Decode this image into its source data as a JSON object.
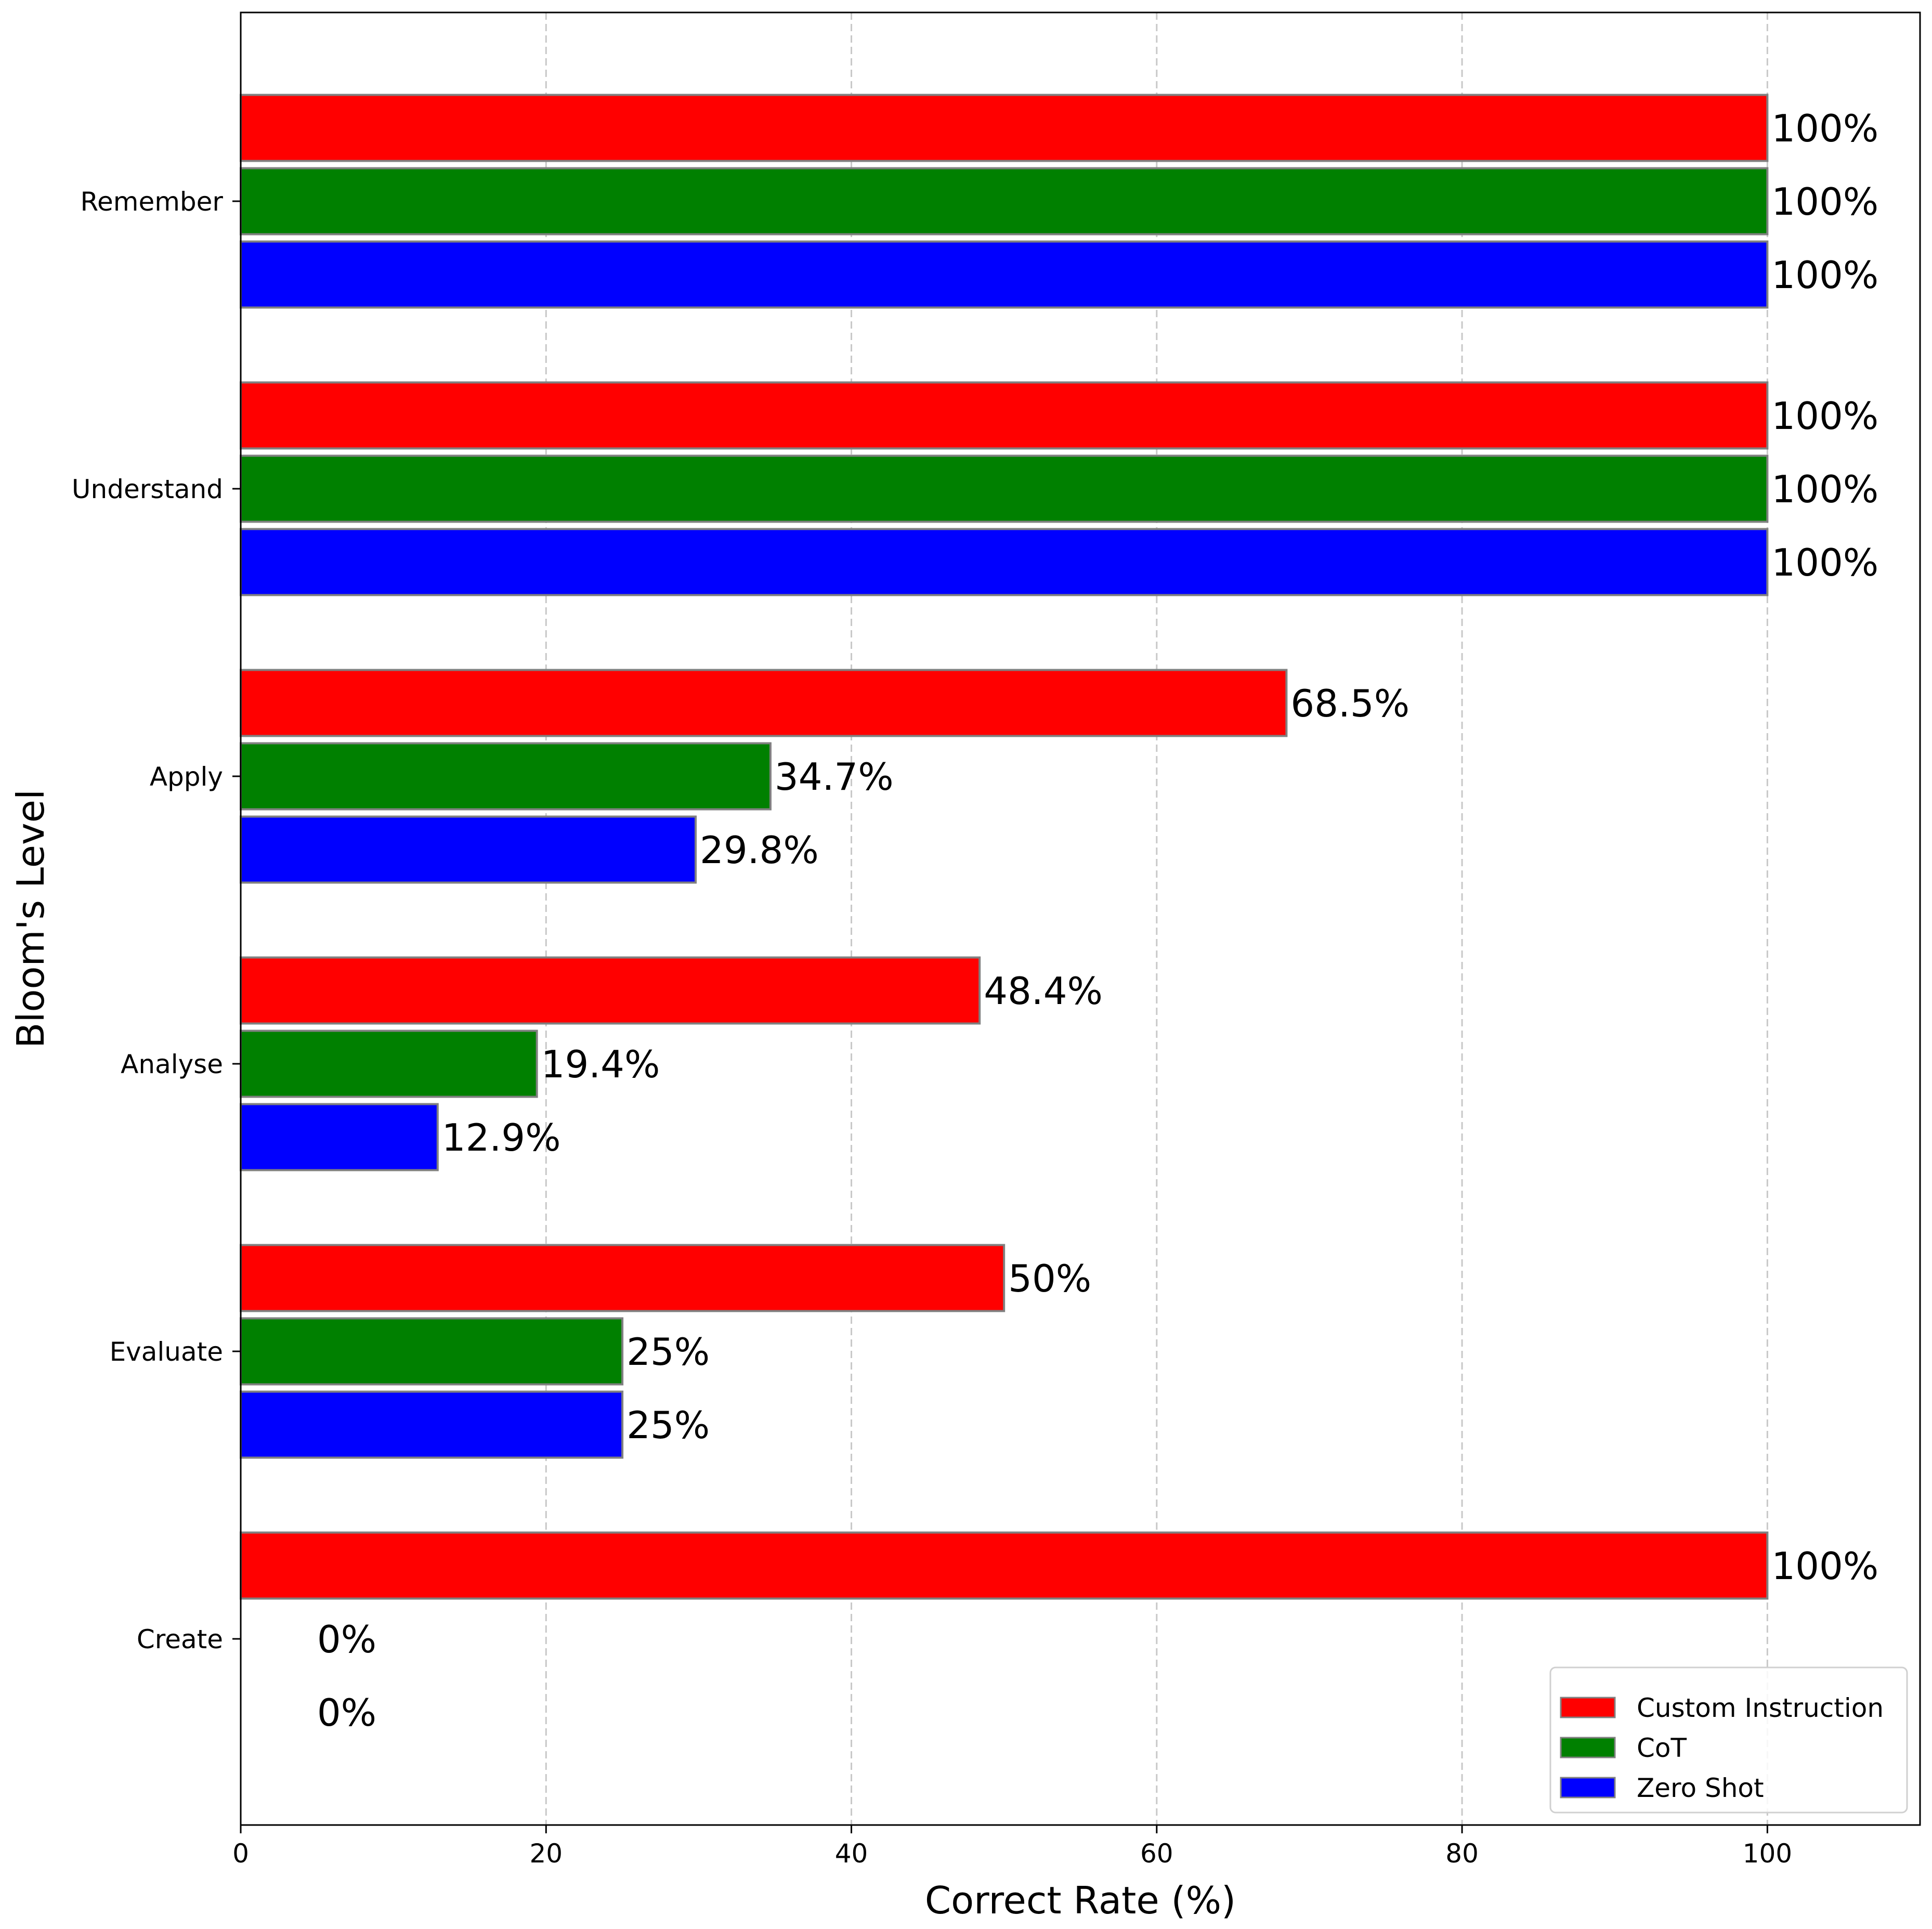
{
  "chart_data": {
    "type": "bar",
    "orientation": "horizontal",
    "title": "",
    "xlabel": "Correct Rate (%)",
    "ylabel": "Bloom's Level",
    "xlim": [
      0,
      110
    ],
    "xticks": [
      0,
      20,
      40,
      60,
      80,
      100
    ],
    "grid": "x-dashed",
    "categories": [
      "Remember",
      "Understand",
      "Apply",
      "Analyse",
      "Evaluate",
      "Create"
    ],
    "series": [
      {
        "name": "Custom Instruction",
        "color": "#ff0000",
        "values": [
          100,
          100,
          68.5,
          48.4,
          50,
          100
        ],
        "labels": [
          "100%",
          "100%",
          "68.5%",
          "48.4%",
          "50%",
          "100%"
        ]
      },
      {
        "name": "CoT",
        "color": "#008000",
        "values": [
          100,
          100,
          34.7,
          19.4,
          25,
          0
        ],
        "labels": [
          "100%",
          "100%",
          "34.7%",
          "19.4%",
          "25%",
          "0%"
        ]
      },
      {
        "name": "Zero Shot",
        "color": "#0000ff",
        "values": [
          100,
          100,
          29.8,
          12.9,
          25,
          0
        ],
        "labels": [
          "100%",
          "100%",
          "29.8%",
          "12.9%",
          "25%",
          "0%"
        ]
      }
    ],
    "legend": {
      "position": "bottom-right",
      "entries": [
        "Custom Instruction",
        "CoT",
        "Zero Shot"
      ]
    },
    "bar_edge_color": "#808080",
    "gridline_color": "#c8c8c8"
  }
}
